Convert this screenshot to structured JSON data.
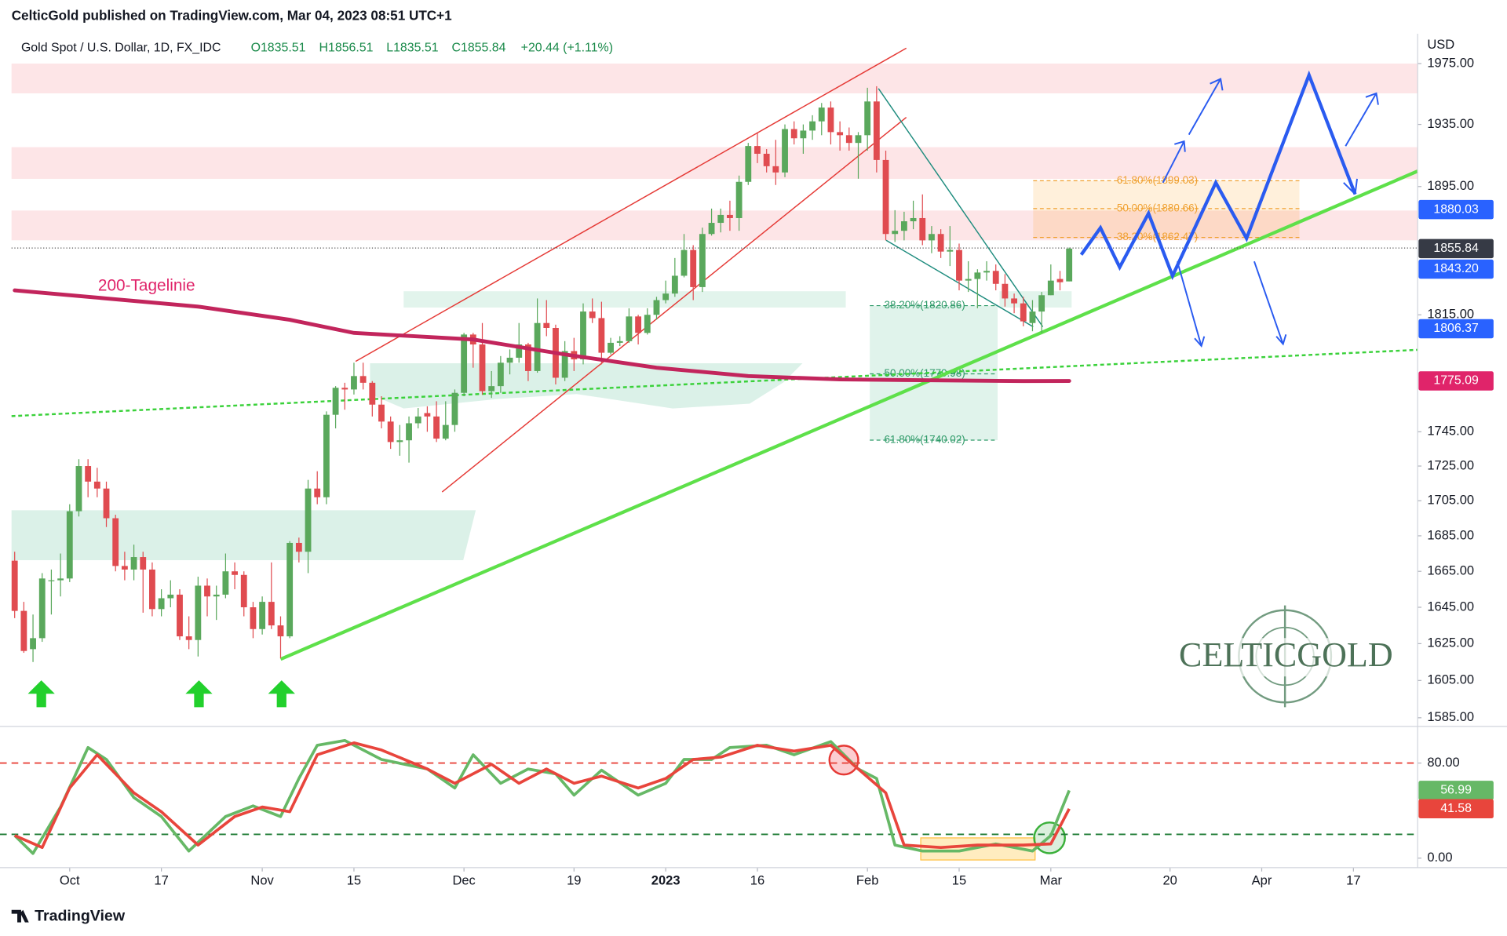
{
  "header": {
    "published": "CelticGold published on TradingView.com, Mar 04, 2023 08:51 UTC+1",
    "symbol": "Gold Spot / U.S. Dollar, 1D, FX_IDC",
    "open": "O1835.51",
    "high": "H1856.51",
    "low": "L1835.51",
    "close": "C1855.84",
    "change": "+20.44 (+1.11%)"
  },
  "chart_data": [
    {
      "type": "candlestick",
      "currency": "USD",
      "log_scale": true,
      "up_color": "#5aa85c",
      "down_color": "#e04b50",
      "xlim": [
        -1.6,
        153
      ],
      "xticks": [
        {
          "value": 6,
          "label": "Oct"
        },
        {
          "value": 16,
          "label": "17"
        },
        {
          "value": 27,
          "label": "Nov"
        },
        {
          "value": 37,
          "label": "15"
        },
        {
          "value": 49,
          "label": "Dec"
        },
        {
          "value": 61,
          "label": "19"
        },
        {
          "value": 71,
          "label": "2023"
        },
        {
          "value": 81,
          "label": "16"
        },
        {
          "value": 93,
          "label": "Feb"
        },
        {
          "value": 103,
          "label": "15"
        },
        {
          "value": 113,
          "label": "Mar"
        },
        {
          "value": 126,
          "label": "20"
        },
        {
          "value": 136,
          "label": "Apr"
        },
        {
          "value": 146,
          "label": "17"
        }
      ],
      "ylim": [
        1580.9,
        1994.9
      ],
      "yticks": [
        {
          "value": 1975,
          "label": "1975.00"
        },
        {
          "value": 1935,
          "label": "1935.00"
        },
        {
          "value": 1895,
          "label": "1895.00"
        },
        {
          "value": 1815,
          "label": "1815.00"
        },
        {
          "value": 1745,
          "label": "1745.00"
        },
        {
          "value": 1725,
          "label": "1725.00"
        },
        {
          "value": 1705,
          "label": "1705.00"
        },
        {
          "value": 1685,
          "label": "1685.00"
        },
        {
          "value": 1665,
          "label": "1665.00"
        },
        {
          "value": 1645,
          "label": "1645.00"
        },
        {
          "value": 1625,
          "label": "1625.00"
        },
        {
          "value": 1605,
          "label": "1605.00"
        },
        {
          "value": 1585,
          "label": "1585.00"
        }
      ],
      "ohlc": [
        [
          1671,
          1676,
          1639,
          1643
        ],
        [
          1643,
          1648,
          1620,
          1621
        ],
        [
          1622,
          1641,
          1615,
          1628
        ],
        [
          1628,
          1664,
          1626,
          1661
        ],
        [
          1660,
          1666,
          1641,
          1660
        ],
        [
          1660,
          1675,
          1651,
          1661
        ],
        [
          1661,
          1703,
          1659,
          1699
        ],
        [
          1699,
          1729,
          1696,
          1725
        ],
        [
          1725,
          1729,
          1707,
          1716
        ],
        [
          1716,
          1724,
          1707,
          1712
        ],
        [
          1712,
          1716,
          1690,
          1695
        ],
        [
          1695,
          1697,
          1665,
          1668
        ],
        [
          1668,
          1676,
          1660,
          1666
        ],
        [
          1666,
          1680,
          1660,
          1673
        ],
        [
          1673,
          1676,
          1642,
          1666
        ],
        [
          1666,
          1670,
          1640,
          1644
        ],
        [
          1644,
          1655,
          1640,
          1650
        ],
        [
          1650,
          1660,
          1645,
          1652
        ],
        [
          1652,
          1655,
          1627,
          1629
        ],
        [
          1629,
          1640,
          1622,
          1627
        ],
        [
          1627,
          1662,
          1618,
          1657
        ],
        [
          1657,
          1661,
          1640,
          1651
        ],
        [
          1651,
          1657,
          1638,
          1652
        ],
        [
          1652,
          1675,
          1650,
          1665
        ],
        [
          1665,
          1670,
          1655,
          1663
        ],
        [
          1663,
          1665,
          1640,
          1645
        ],
        [
          1645,
          1648,
          1628,
          1633
        ],
        [
          1633,
          1651,
          1630,
          1648
        ],
        [
          1648,
          1670,
          1633,
          1635
        ],
        [
          1635,
          1640,
          1617,
          1629
        ],
        [
          1629,
          1682,
          1628,
          1681
        ],
        [
          1681,
          1684,
          1670,
          1676
        ],
        [
          1676,
          1717,
          1664,
          1712
        ],
        [
          1712,
          1722,
          1703,
          1707
        ],
        [
          1707,
          1757,
          1703,
          1755
        ],
        [
          1755,
          1772,
          1747,
          1771
        ],
        [
          1771,
          1774,
          1758,
          1770
        ],
        [
          1770,
          1786,
          1767,
          1778
        ],
        [
          1778,
          1786,
          1770,
          1774
        ],
        [
          1774,
          1775,
          1754,
          1761
        ],
        [
          1761,
          1766,
          1747,
          1751
        ],
        [
          1751,
          1754,
          1735,
          1739
        ],
        [
          1739,
          1749,
          1731,
          1740
        ],
        [
          1740,
          1754,
          1727,
          1750
        ],
        [
          1750,
          1759,
          1747,
          1754
        ],
        [
          1756,
          1760,
          1745,
          1754
        ],
        [
          1754,
          1763,
          1739,
          1741
        ],
        [
          1741,
          1763,
          1740,
          1749
        ],
        [
          1749,
          1770,
          1745,
          1768
        ],
        [
          1768,
          1804,
          1766,
          1803
        ],
        [
          1803,
          1804,
          1783,
          1797
        ],
        [
          1797,
          1810,
          1767,
          1769
        ],
        [
          1769,
          1781,
          1765,
          1772
        ],
        [
          1772,
          1790,
          1768,
          1786
        ],
        [
          1786,
          1794,
          1779,
          1789
        ],
        [
          1789,
          1810,
          1786,
          1797
        ],
        [
          1797,
          1798,
          1775,
          1781
        ],
        [
          1781,
          1825,
          1780,
          1810
        ],
        [
          1810,
          1824,
          1802,
          1807
        ],
        [
          1807,
          1809,
          1773,
          1777
        ],
        [
          1777,
          1799,
          1775,
          1793
        ],
        [
          1793,
          1801,
          1781,
          1788
        ],
        [
          1788,
          1822,
          1785,
          1817
        ],
        [
          1817,
          1825,
          1810,
          1813
        ],
        [
          1813,
          1823,
          1785,
          1792
        ],
        [
          1792,
          1801,
          1791,
          1798
        ],
        [
          1798,
          1802,
          1796,
          1799
        ],
        [
          1799,
          1819,
          1798,
          1814
        ],
        [
          1814,
          1815,
          1797,
          1804
        ],
        [
          1804,
          1819,
          1803,
          1815
        ],
        [
          1815,
          1826,
          1812,
          1824
        ],
        [
          1824,
          1836,
          1822,
          1828
        ],
        [
          1828,
          1850,
          1826,
          1839
        ],
        [
          1839,
          1865,
          1838,
          1855
        ],
        [
          1855,
          1858,
          1824,
          1832
        ],
        [
          1832,
          1869,
          1829,
          1865
        ],
        [
          1865,
          1881,
          1864,
          1872
        ],
        [
          1872,
          1881,
          1866,
          1877
        ],
        [
          1877,
          1886,
          1867,
          1875
        ],
        [
          1875,
          1902,
          1867,
          1898
        ],
        [
          1898,
          1923,
          1896,
          1921
        ],
        [
          1921,
          1930,
          1910,
          1916
        ],
        [
          1916,
          1919,
          1904,
          1908
        ],
        [
          1908,
          1925,
          1896,
          1904
        ],
        [
          1904,
          1935,
          1901,
          1932
        ],
        [
          1932,
          1937,
          1922,
          1926
        ],
        [
          1926,
          1935,
          1916,
          1931
        ],
        [
          1931,
          1941,
          1925,
          1937
        ],
        [
          1937,
          1949,
          1928,
          1946
        ],
        [
          1946,
          1950,
          1922,
          1930
        ],
        [
          1930,
          1937,
          1918,
          1928
        ],
        [
          1928,
          1933,
          1918,
          1923
        ],
        [
          1923,
          1930,
          1900,
          1928
        ],
        [
          1928,
          1959,
          1918,
          1950
        ],
        [
          1950,
          1960,
          1904,
          1912
        ],
        [
          1912,
          1918,
          1861,
          1865
        ],
        [
          1865,
          1880,
          1860,
          1867
        ],
        [
          1867,
          1879,
          1861,
          1873
        ],
        [
          1873,
          1886,
          1868,
          1875
        ],
        [
          1875,
          1890,
          1858,
          1861
        ],
        [
          1861,
          1870,
          1853,
          1865
        ],
        [
          1865,
          1868,
          1850,
          1854
        ],
        [
          1854,
          1870,
          1845,
          1855
        ],
        [
          1855,
          1859,
          1830,
          1836
        ],
        [
          1836,
          1848,
          1829,
          1837
        ],
        [
          1837,
          1843,
          1819,
          1841
        ],
        [
          1841,
          1848,
          1836,
          1842
        ],
        [
          1842,
          1846,
          1830,
          1834
        ],
        [
          1834,
          1840,
          1820,
          1825
        ],
        [
          1825,
          1828,
          1816,
          1822
        ],
        [
          1822,
          1826,
          1808,
          1811
        ],
        [
          1810,
          1824,
          1805,
          1817
        ],
        [
          1817,
          1829,
          1804,
          1827
        ],
        [
          1827,
          1846,
          1827,
          1836
        ],
        [
          1837,
          1842,
          1830,
          1835
        ],
        [
          1835.51,
          1856.51,
          1835.51,
          1855.84
        ]
      ],
      "sma": {
        "name": "200-Tagelinie",
        "color": "#c2255c",
        "x": [
          0,
          10,
          20,
          30,
          37,
          50,
          60,
          70,
          80,
          90,
          100,
          110,
          115
        ],
        "values": [
          1830,
          1825,
          1820,
          1812,
          1804,
          1800,
          1791,
          1783,
          1778,
          1776,
          1775.5,
          1775,
          1775.09
        ]
      }
    },
    {
      "type": "line",
      "xlim": [
        -1.6,
        153
      ],
      "ylim": [
        -8,
        110
      ],
      "yticks": [
        {
          "value": 80,
          "label": "80.00"
        },
        {
          "value": 0,
          "label": "0.00"
        }
      ],
      "levels": [
        {
          "value": 80,
          "color": "#e8453c"
        },
        {
          "value": 20,
          "color": "#1e7b34"
        }
      ],
      "series": [
        {
          "color": "#66b866",
          "x": [
            0,
            2,
            5,
            8,
            10,
            13,
            16,
            19,
            23,
            26,
            29,
            31,
            33,
            36,
            40,
            45,
            48,
            50,
            53,
            56,
            59,
            61,
            64,
            68,
            71,
            73,
            76,
            78,
            82,
            85,
            89,
            92,
            94,
            96,
            99,
            103,
            107,
            111,
            113,
            115
          ],
          "values": [
            19,
            4,
            43,
            93,
            83,
            51,
            35,
            6,
            35,
            44,
            35,
            67,
            95,
            99,
            83,
            75,
            59,
            87,
            63,
            75,
            71,
            53,
            74,
            53,
            63,
            83,
            83,
            93,
            95,
            87,
            98,
            75,
            67,
            11,
            6,
            6,
            12,
            6,
            19,
            56.99
          ]
        },
        {
          "color": "#e8453c",
          "x": [
            0,
            3,
            6,
            9,
            13,
            16,
            20,
            24,
            27,
            30,
            33,
            37,
            40,
            45,
            48,
            52,
            55,
            58,
            61,
            64,
            68,
            71,
            74,
            77,
            81,
            85,
            89,
            92,
            95,
            97,
            101,
            105,
            110,
            113,
            115
          ],
          "values": [
            19,
            9,
            59,
            87,
            55,
            39,
            11,
            35,
            43,
            39,
            87,
            97,
            91,
            75,
            63,
            79,
            63,
            75,
            63,
            69,
            59,
            67,
            83,
            85,
            95,
            90,
            95,
            75,
            55,
            11,
            9,
            11,
            11,
            12,
            41.58
          ]
        }
      ]
    }
  ],
  "annotations": {
    "fib_upper": [
      "61.80%(1899.03)",
      "50.00%(1880.66)",
      "38.20%(1862.47)"
    ],
    "fib_lower": [
      "38.20%(1820.86)",
      "50.00%(1779.98)",
      "61.80%(1740.02)"
    ],
    "price_labels": [
      "1880.03",
      "1843.20",
      "1806.37"
    ],
    "watermark": "CELTICGOLD"
  },
  "footer": {
    "logo": "TradingView"
  }
}
